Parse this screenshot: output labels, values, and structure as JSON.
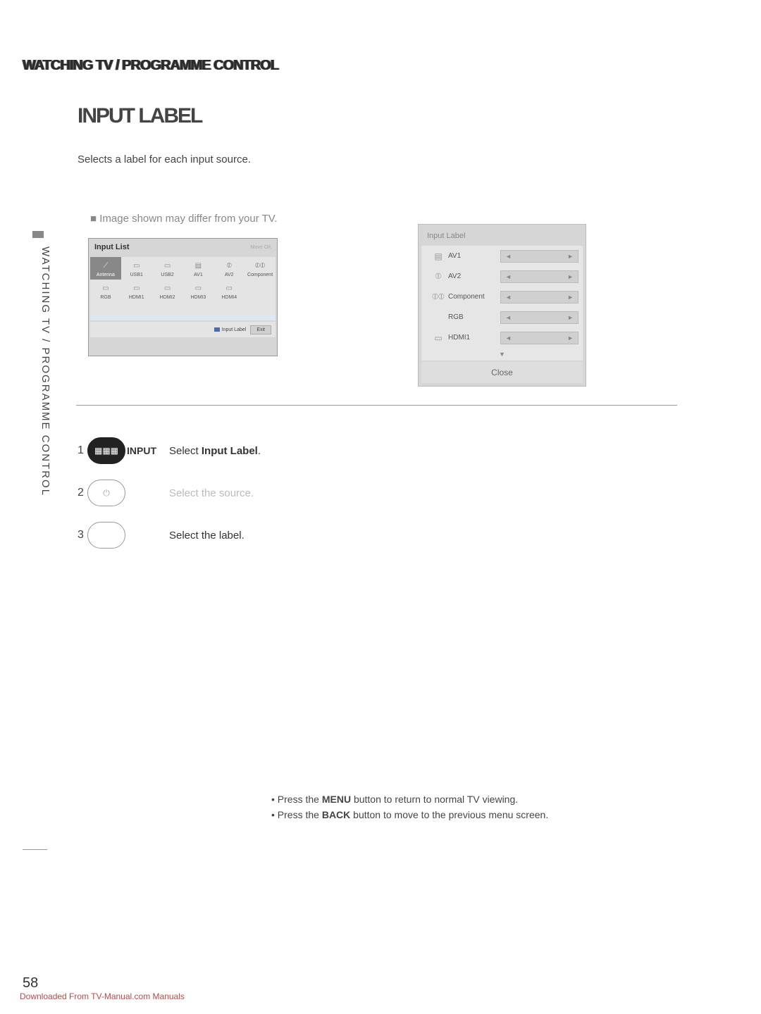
{
  "header": {
    "breadcrumb": "WATCHING TV / PROGRAMME CONTROL"
  },
  "title": "INPUT LABEL",
  "intro": "Selects a label for each input source.",
  "note": "■ Image shown may differ from your TV.",
  "sidebar": "WATCHING TV / PROGRAMME CONTROL",
  "inputList": {
    "title": "Input List",
    "meta_move": "Move",
    "meta_ok": "OK",
    "row1": [
      {
        "name": "Antenna",
        "icon": "⟋"
      },
      {
        "name": "USB1",
        "icon": "▭"
      },
      {
        "name": "USB2",
        "icon": "▭"
      },
      {
        "name": "AV1",
        "icon": "▤"
      },
      {
        "name": "AV2",
        "icon": "⦶"
      },
      {
        "name": "Component",
        "icon": "⦶⦶"
      }
    ],
    "row2": [
      {
        "name": "RGB",
        "icon": "▭"
      },
      {
        "name": "HDMI1",
        "icon": "▭"
      },
      {
        "name": "HDMI2",
        "icon": "▭"
      },
      {
        "name": "HDMI3",
        "icon": "▭"
      },
      {
        "name": "HDMI4",
        "icon": "▭"
      }
    ],
    "footer_label": "Input Label",
    "footer_exit": "Exit"
  },
  "labelPanel": {
    "title": "Input Label",
    "rows": [
      {
        "name": "AV1",
        "icon": "▤"
      },
      {
        "name": "AV2",
        "icon": "⦶"
      },
      {
        "name": "Component",
        "icon": "⦶⦶"
      },
      {
        "name": "RGB",
        "icon": ""
      },
      {
        "name": "HDMI1",
        "icon": "▭"
      }
    ],
    "arrow_left": "◄",
    "arrow_right": "►",
    "nav_down": "▼",
    "close": "Close"
  },
  "hrSpacer": "",
  "steps": {
    "s1": {
      "num": "1",
      "icon": "▦▦▦",
      "letter": "INPUT",
      "text1": "Select ",
      "bold": "Input Label",
      "text2": "."
    },
    "s2": {
      "num": "2",
      "icon": "⏻",
      "text": "Select the source."
    },
    "s3": {
      "num": "3",
      "icon": "",
      "text": "Select the label."
    }
  },
  "notes": {
    "line1a": "• Press the ",
    "line1b": "MENU",
    "line1c": " button to return to normal TV viewing.",
    "line2a": "• Press the ",
    "line2b": "BACK",
    "line2c": " button to move to the previous menu screen."
  },
  "pageNumber": "58",
  "download": "Downloaded From TV-Manual.com Manuals"
}
